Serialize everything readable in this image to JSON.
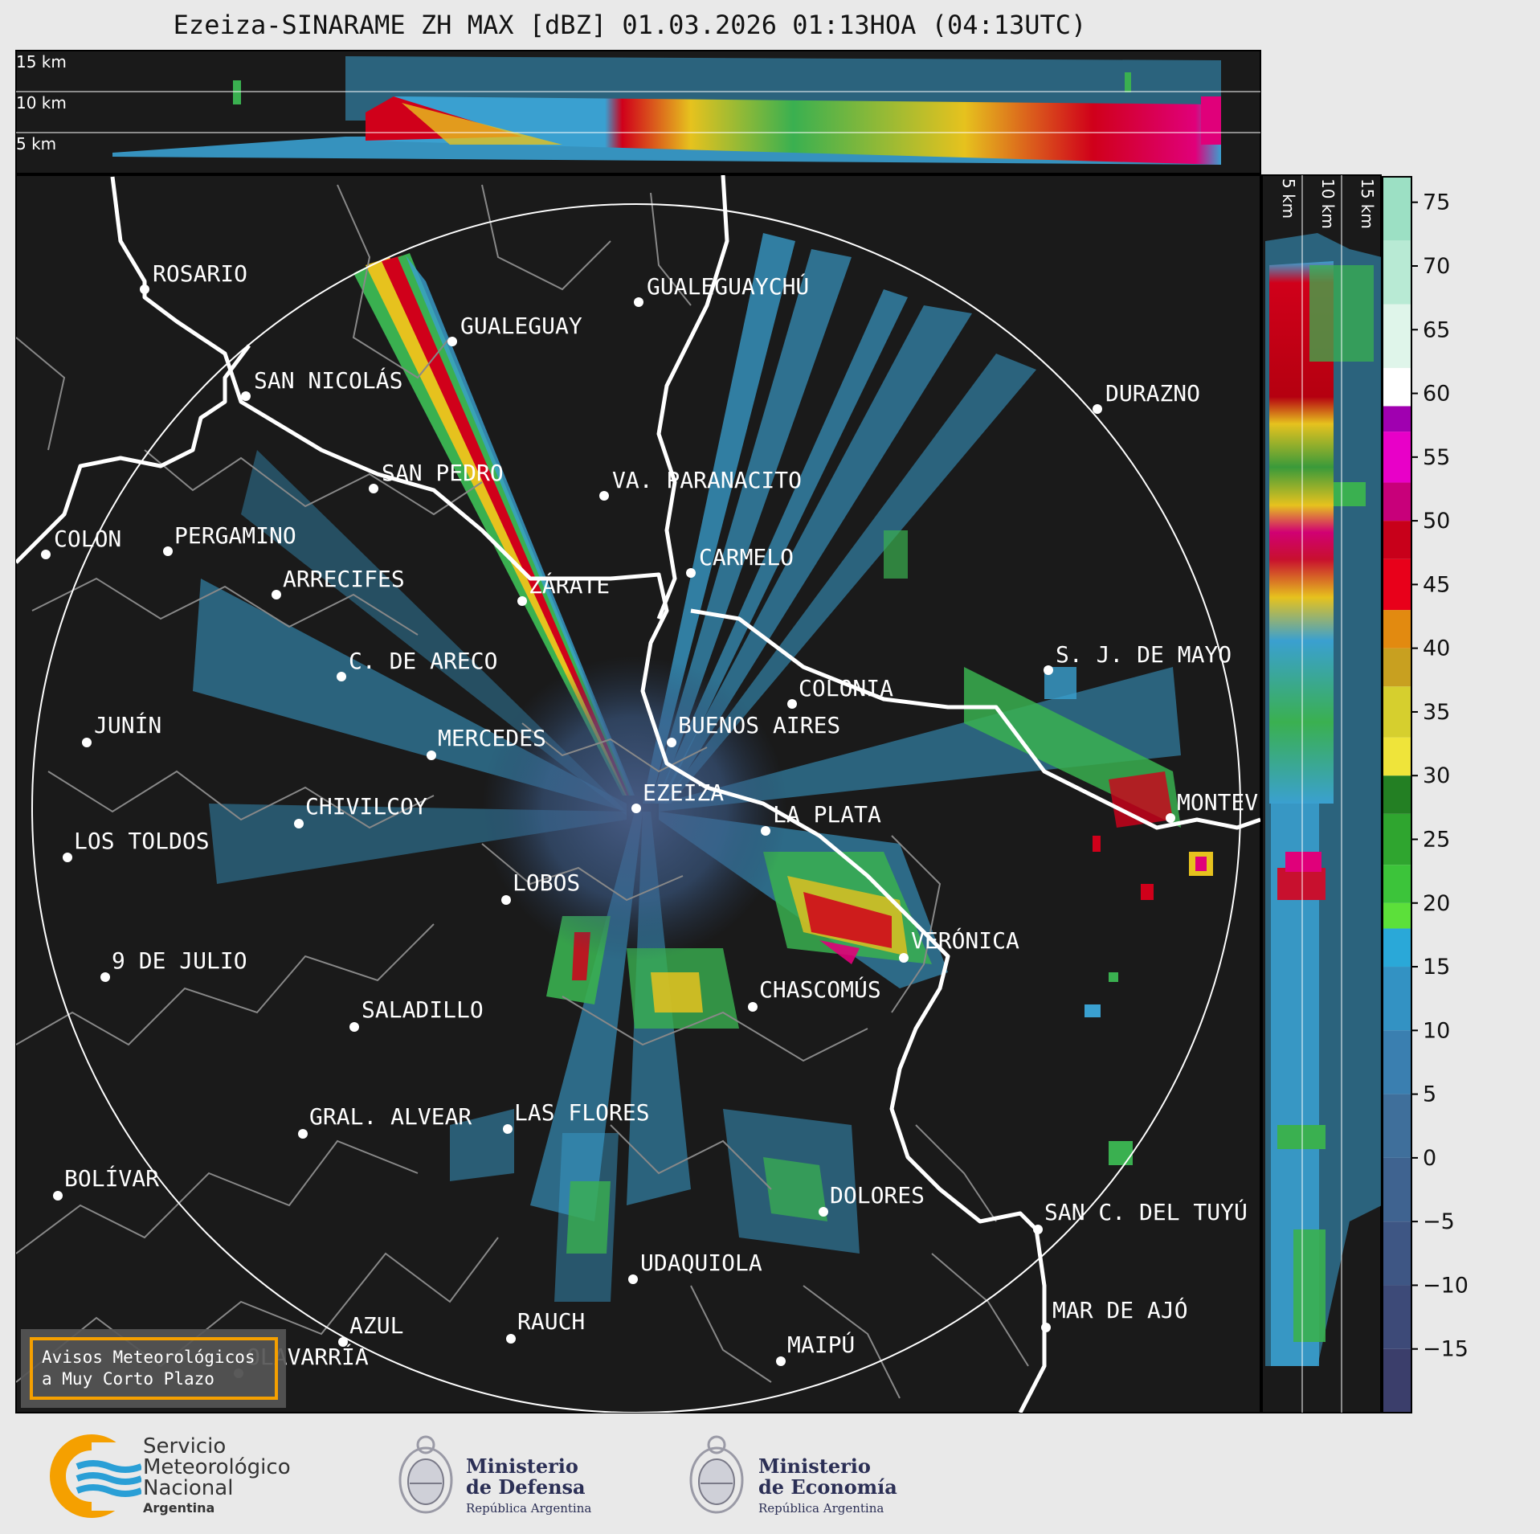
{
  "title": "Ezeiza-SINARAME ZH MAX [dBZ] 01.03.2026 01:13HOA (04:13UTC)",
  "top_panel_heights": [
    "15 km",
    "10 km",
    "5 km"
  ],
  "side_panel_heights": [
    "5 km",
    "10 km",
    "15 km"
  ],
  "colorbar": {
    "ticks": [
      "75",
      "70",
      "65",
      "60",
      "55",
      "50",
      "45",
      "40",
      "35",
      "30",
      "25",
      "20",
      "15",
      "10",
      "5",
      "0",
      "−5",
      "−10",
      "−15"
    ],
    "range_dbz": [
      -20,
      77
    ]
  },
  "cities": [
    {
      "name": "ROSARIO",
      "id": "rosario"
    },
    {
      "name": "GUALEGUAYCHÚ",
      "id": "gualeguaychu"
    },
    {
      "name": "GUALEGUAY",
      "id": "gualeguay"
    },
    {
      "name": "SAN NICOLÁS",
      "id": "san-nicolas"
    },
    {
      "name": "DURAZNO",
      "id": "durazno"
    },
    {
      "name": "SAN PEDRO",
      "id": "san-pedro"
    },
    {
      "name": "VA. PARANACITO",
      "id": "va-paranacito"
    },
    {
      "name": "COLON",
      "id": "colon"
    },
    {
      "name": "PERGAMINO",
      "id": "pergamino"
    },
    {
      "name": "CARMELO",
      "id": "carmelo"
    },
    {
      "name": "ARRECIFES",
      "id": "arrecifes"
    },
    {
      "name": "ZÁRATE",
      "id": "zarate"
    },
    {
      "name": "C. DE ARECO",
      "id": "c-de-areco"
    },
    {
      "name": "S. J. DE MAYO",
      "id": "s-j-de-mayo"
    },
    {
      "name": "COLONIA",
      "id": "colonia"
    },
    {
      "name": "JUNÍN",
      "id": "junin"
    },
    {
      "name": "MERCEDES",
      "id": "mercedes"
    },
    {
      "name": "BUENOS AIRES",
      "id": "buenos-aires"
    },
    {
      "name": "EZEIZA",
      "id": "ezeiza"
    },
    {
      "name": "CHIVILCOY",
      "id": "chivilcoy"
    },
    {
      "name": "LA PLATA",
      "id": "la-plata"
    },
    {
      "name": "MONTEV",
      "id": "montevideo"
    },
    {
      "name": "LOS TOLDOS",
      "id": "los-toldos"
    },
    {
      "name": "LOBOS",
      "id": "lobos"
    },
    {
      "name": "VERÓNICA",
      "id": "veronica"
    },
    {
      "name": "9 DE JULIO",
      "id": "9-de-julio"
    },
    {
      "name": "CHASCOMÚS",
      "id": "chascomus"
    },
    {
      "name": "SALADILLO",
      "id": "saladillo"
    },
    {
      "name": "GRAL. ALVEAR",
      "id": "gral-alvear"
    },
    {
      "name": "LAS FLORES",
      "id": "las-flores"
    },
    {
      "name": "BOLÍVAR",
      "id": "bolivar"
    },
    {
      "name": "DOLORES",
      "id": "dolores"
    },
    {
      "name": "SAN C. DEL TUYÚ",
      "id": "san-c-del-tuyu"
    },
    {
      "name": "UDAQUIOLA",
      "id": "udaquiola"
    },
    {
      "name": "MAR DE AJÓ",
      "id": "mar-de-ajo"
    },
    {
      "name": "AZUL",
      "id": "azul"
    },
    {
      "name": "RAUCH",
      "id": "rauch"
    },
    {
      "name": "MAIPÚ",
      "id": "maipu"
    },
    {
      "name": "OLAVARRÍA",
      "id": "olavarria"
    }
  ],
  "avisos_button": {
    "line1": "Avisos Meteorológicos",
    "line2": "a Muy Corto Plazo"
  },
  "footer": {
    "smn_line1": "Servicio",
    "smn_line2": "Meteorológico",
    "smn_line3": "Nacional",
    "smn_line4": "Argentina",
    "defensa_line1": "Ministerio",
    "defensa_line2": "de Defensa",
    "defensa_sub": "República Argentina",
    "economia_line1": "Ministerio",
    "economia_line2": "de Economía",
    "economia_sub": "República Argentina"
  },
  "colors": {
    "map_bg": "#1a1a1a",
    "coast": "#ffffff",
    "borders": "#888888",
    "accent_orange": "#f5a000",
    "smn_blue": "#2a9fd6"
  }
}
